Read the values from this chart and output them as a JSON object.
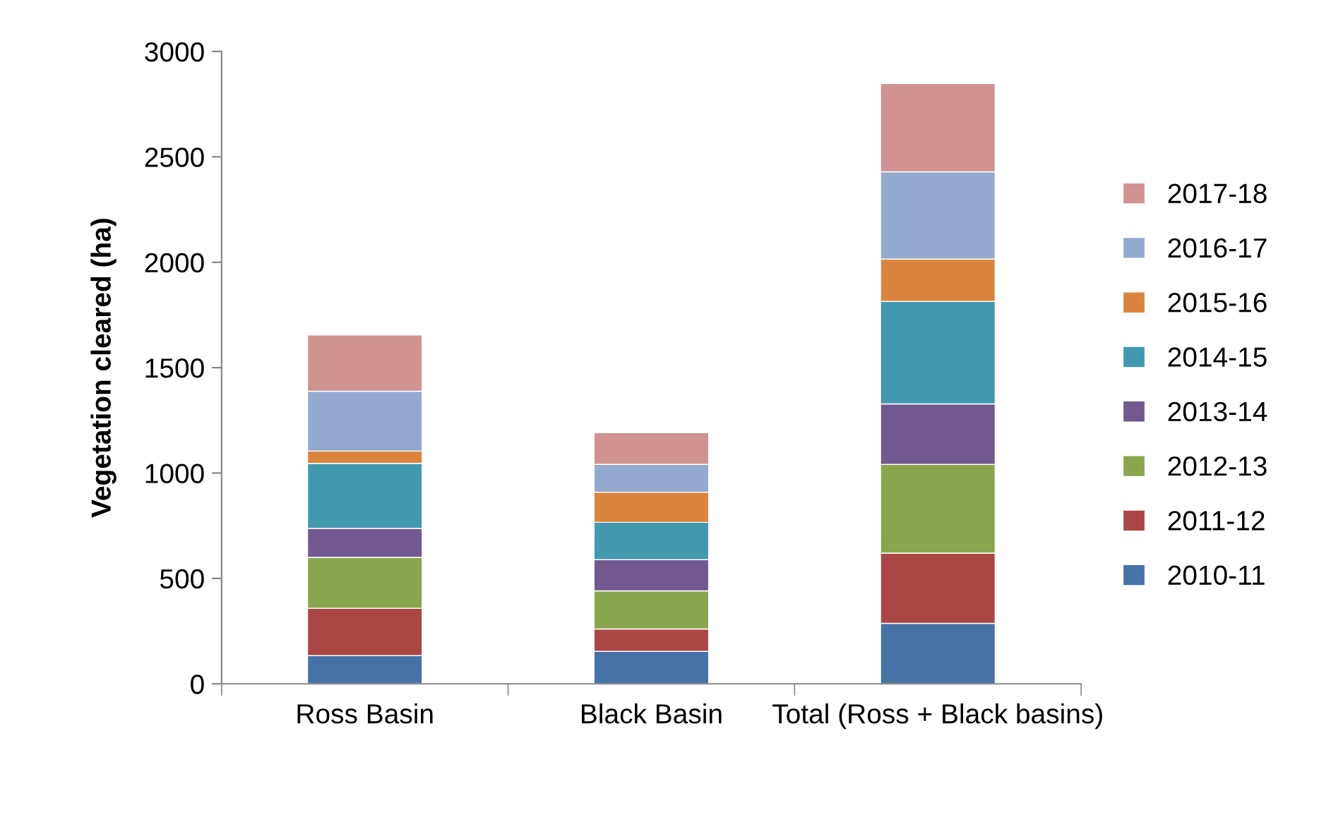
{
  "chart_data": {
    "type": "bar",
    "stacked": true,
    "ylabel": "Vegetation cleared (ha)",
    "categories": [
      "Ross Basin",
      "Black Basin",
      "Total (Ross + Black basins)"
    ],
    "series": [
      {
        "name": "2010-11",
        "color": "#4572a7",
        "values": [
          134,
          154,
          287
        ]
      },
      {
        "name": "2011-12",
        "color": "#aa4643",
        "values": [
          224,
          106,
          333
        ]
      },
      {
        "name": "2012-13",
        "color": "#89a54e",
        "values": [
          242,
          181,
          421
        ]
      },
      {
        "name": "2013-14",
        "color": "#71588f",
        "values": [
          137,
          148,
          287
        ]
      },
      {
        "name": "2014-15",
        "color": "#4198af",
        "values": [
          309,
          177,
          486
        ]
      },
      {
        "name": "2015-16",
        "color": "#db843d",
        "values": [
          58,
          143,
          201
        ]
      },
      {
        "name": "2016-17",
        "color": "#93a9cf",
        "values": [
          284,
          132,
          414
        ]
      },
      {
        "name": "2017-18",
        "color": "#d19392",
        "values": [
          267,
          150,
          419
        ]
      }
    ],
    "ylim": [
      0,
      3000
    ],
    "yticks": [
      0,
      500,
      1000,
      1500,
      2000,
      2500,
      3000
    ],
    "grid": false,
    "legend": "right"
  }
}
